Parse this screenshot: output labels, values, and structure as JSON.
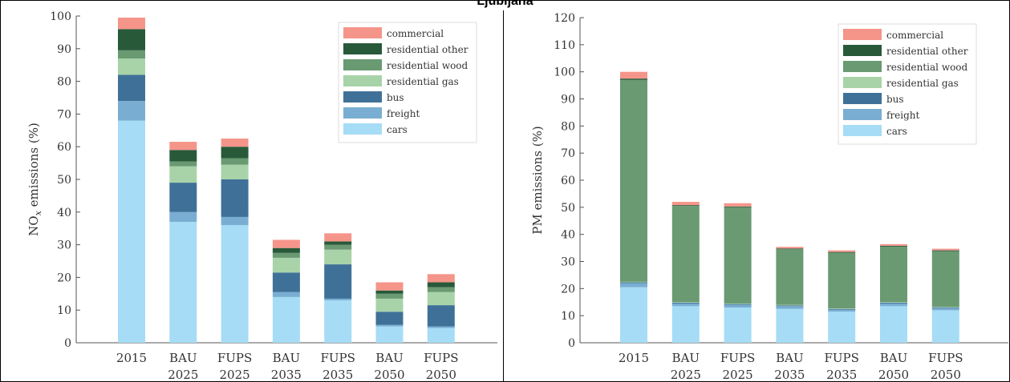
{
  "title": "Ljubljana",
  "chart_data": [
    {
      "type": "bar",
      "stacked": true,
      "ylabel": "NO$_x$ emissions (%)",
      "ylabel_main": "NO",
      "ylabel_sub": "x",
      "ylabel_rest": " emissions (%)",
      "ylim": [
        0,
        100
      ],
      "yticks": [
        0,
        10,
        20,
        30,
        40,
        50,
        60,
        70,
        80,
        90,
        100
      ],
      "legend_position": "top-right",
      "categories": [
        [
          "2015"
        ],
        [
          "BAU",
          "2025"
        ],
        [
          "FUPS",
          "2025"
        ],
        [
          "BAU",
          "2035"
        ],
        [
          "FUPS",
          "2035"
        ],
        [
          "BAU",
          "2050"
        ],
        [
          "FUPS",
          "2050"
        ]
      ],
      "series": [
        {
          "name": "cars",
          "color": "#a6dcf5",
          "values": [
            68,
            37,
            36,
            14,
            13,
            5,
            4.5
          ]
        },
        {
          "name": "freight",
          "color": "#79aed2",
          "values": [
            6,
            3,
            2.5,
            1.5,
            0.5,
            0.5,
            0.5
          ]
        },
        {
          "name": "bus",
          "color": "#3f7198",
          "values": [
            8,
            9,
            11.5,
            6,
            10.5,
            4,
            6.5
          ]
        },
        {
          "name": "residential gas",
          "color": "#a8d3a8",
          "values": [
            5,
            5,
            4.5,
            4.5,
            4.5,
            4,
            4
          ]
        },
        {
          "name": "residential wood",
          "color": "#6a9a72",
          "values": [
            2.5,
            1.5,
            2,
            1.5,
            1.5,
            1.5,
            1.5
          ]
        },
        {
          "name": "residential other",
          "color": "#285a3a",
          "values": [
            6.5,
            3.5,
            3.5,
            1.5,
            1,
            1,
            1.5
          ]
        },
        {
          "name": "commercial",
          "color": "#f5958a",
          "values": [
            3.5,
            2.5,
            2.5,
            2.5,
            2.5,
            2.5,
            2.5
          ]
        }
      ]
    },
    {
      "type": "bar",
      "stacked": true,
      "ylabel": "PM emissions (%)",
      "ylim": [
        0,
        120
      ],
      "yticks": [
        0,
        10,
        20,
        30,
        40,
        50,
        60,
        70,
        80,
        90,
        100,
        110,
        120
      ],
      "legend_position": "top-right",
      "categories": [
        [
          "2015"
        ],
        [
          "BAU",
          "2025"
        ],
        [
          "FUPS",
          "2025"
        ],
        [
          "BAU",
          "2035"
        ],
        [
          "FUPS",
          "2035"
        ],
        [
          "BAU",
          "2050"
        ],
        [
          "FUPS",
          "2050"
        ]
      ],
      "series": [
        {
          "name": "cars",
          "color": "#a6dcf5",
          "values": [
            20.5,
            13.5,
            13,
            12.5,
            11.5,
            13.5,
            12
          ]
        },
        {
          "name": "freight",
          "color": "#79aed2",
          "values": [
            1.5,
            1,
            1,
            1,
            0.7,
            1,
            0.8
          ]
        },
        {
          "name": "bus",
          "color": "#3f7198",
          "values": [
            0.3,
            0.3,
            0.3,
            0.3,
            0.3,
            0.3,
            0.3
          ]
        },
        {
          "name": "residential gas",
          "color": "#a8d3a8",
          "values": [
            0.2,
            0.2,
            0.2,
            0.2,
            0.2,
            0.2,
            0.2
          ]
        },
        {
          "name": "residential wood",
          "color": "#6a9a72",
          "values": [
            74.5,
            35.5,
            35.5,
            20.5,
            20.5,
            20.5,
            20.5
          ]
        },
        {
          "name": "residential other",
          "color": "#285a3a",
          "values": [
            0.5,
            0.3,
            0.3,
            0.3,
            0.3,
            0.3,
            0.3
          ]
        },
        {
          "name": "commercial",
          "color": "#f5958a",
          "values": [
            2.5,
            1.2,
            1.2,
            0.6,
            0.6,
            0.6,
            0.6
          ]
        }
      ]
    }
  ]
}
